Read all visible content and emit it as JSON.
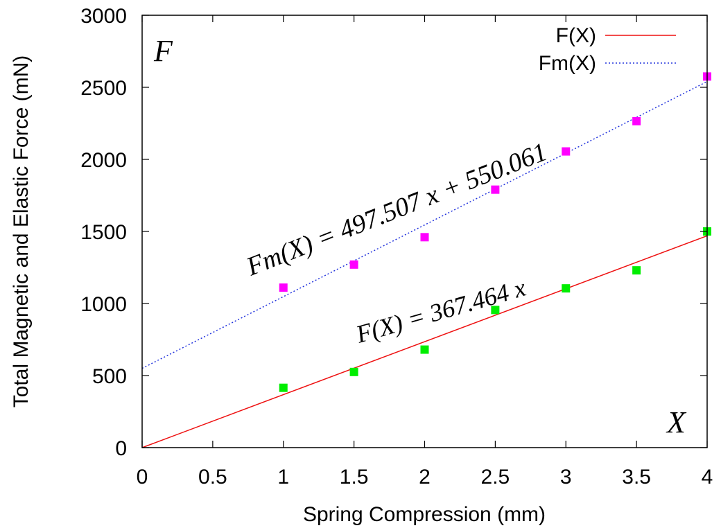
{
  "chart_data": {
    "type": "scatter",
    "xlabel": "Spring Compression (mm)",
    "ylabel": "Total Magnetic and Elastic Force (mN)",
    "xlim": [
      0,
      4
    ],
    "ylim": [
      0,
      3000
    ],
    "x_ticks": [
      "0",
      "0.5",
      "1",
      "1.5",
      "2",
      "2.5",
      "3",
      "3.5",
      "4"
    ],
    "y_ticks": [
      "0",
      "500",
      "1000",
      "1500",
      "2000",
      "2500",
      "3000"
    ],
    "grid": false,
    "legend_position": "top-right",
    "corner_labels": {
      "y_axis": "F",
      "x_axis": "X"
    },
    "series": [
      {
        "name": "Fm(X)",
        "kind": "fit-line",
        "style": "dotted",
        "color": "#2233dd",
        "slope": 497.507,
        "intercept": 550.061,
        "equation": "Fm(X) = 497.507 x + 550.061"
      },
      {
        "name": "F(X)",
        "kind": "fit-line",
        "style": "solid",
        "color": "#ee1111",
        "slope": 367.464,
        "intercept": 0,
        "equation": "F(X) = 367.464 x"
      },
      {
        "kind": "points",
        "color": "#ff00ff",
        "x": [
          1,
          1.5,
          2,
          2.5,
          3,
          3.5,
          4
        ],
        "y": [
          1110,
          1270,
          1460,
          1790,
          2055,
          2265,
          2575
        ]
      },
      {
        "kind": "points",
        "color": "#00ee00",
        "x": [
          1,
          1.5,
          2,
          2.5,
          3,
          3.5,
          4
        ],
        "y": [
          415,
          525,
          680,
          955,
          1105,
          1230,
          1500
        ]
      }
    ]
  }
}
